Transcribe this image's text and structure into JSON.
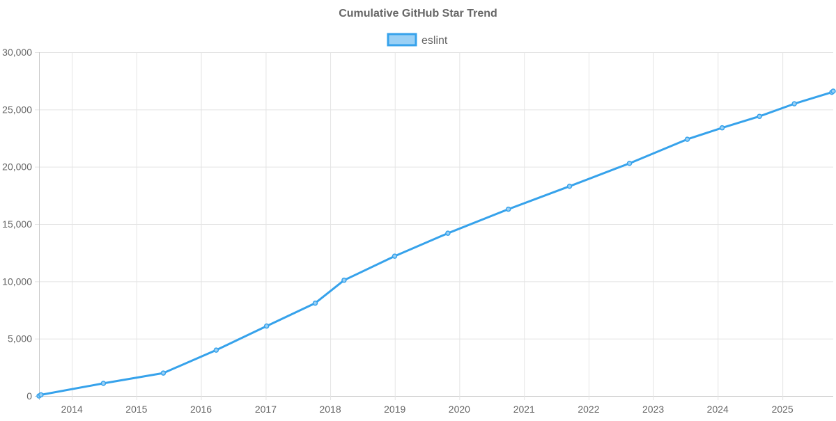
{
  "chart_data": {
    "type": "line",
    "title": "Cumulative GitHub Star Trend",
    "xlabel": "",
    "ylabel": "",
    "x_axis": {
      "type": "time",
      "range": [
        "2013-06-29",
        "2025-10-15"
      ],
      "tick_labels": [
        "2014",
        "2015",
        "2016",
        "2017",
        "2018",
        "2019",
        "2020",
        "2021",
        "2022",
        "2023",
        "2024",
        "2025"
      ]
    },
    "y_axis": {
      "range": [
        0,
        30000
      ],
      "tick_values": [
        0,
        5000,
        10000,
        15000,
        20000,
        25000,
        30000
      ],
      "tick_labels": [
        "0",
        "5,000",
        "10,000",
        "15,000",
        "20,000",
        "25,000",
        "30,000"
      ]
    },
    "grid": true,
    "legend": {
      "position": "top-center"
    },
    "series": [
      {
        "name": "eslint",
        "color": "#36a2eb",
        "fill_color": "#9ad0f5",
        "points": [
          {
            "x": "2013-06-29",
            "y": 0
          },
          {
            "x": "2013-07-10",
            "y": 100
          },
          {
            "x": "2014-06-28",
            "y": 1100
          },
          {
            "x": "2015-06-02",
            "y": 2000
          },
          {
            "x": "2016-03-27",
            "y": 4000
          },
          {
            "x": "2017-01-06",
            "y": 6100
          },
          {
            "x": "2017-10-08",
            "y": 8100
          },
          {
            "x": "2018-03-20",
            "y": 10100
          },
          {
            "x": "2018-12-31",
            "y": 12200
          },
          {
            "x": "2019-10-28",
            "y": 14200
          },
          {
            "x": "2020-10-04",
            "y": 16300
          },
          {
            "x": "2021-09-15",
            "y": 18300
          },
          {
            "x": "2022-08-20",
            "y": 20300
          },
          {
            "x": "2023-07-13",
            "y": 22400
          },
          {
            "x": "2024-01-26",
            "y": 23400
          },
          {
            "x": "2024-08-24",
            "y": 24400
          },
          {
            "x": "2025-03-09",
            "y": 25500
          },
          {
            "x": "2025-10-07",
            "y": 26500
          },
          {
            "x": "2025-10-15",
            "y": 26600
          }
        ]
      }
    ]
  }
}
